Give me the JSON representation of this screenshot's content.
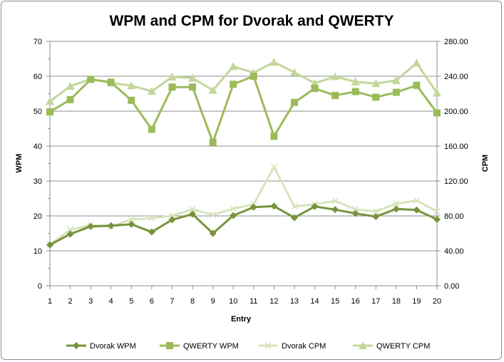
{
  "chart_data": {
    "type": "line",
    "title": "WPM and CPM for Dvorak and QWERTY",
    "xlabel": "Entry",
    "ylabel": "WPM",
    "y2label": "CPM",
    "x": [
      1,
      2,
      3,
      4,
      5,
      6,
      7,
      8,
      9,
      10,
      11,
      12,
      13,
      14,
      15,
      16,
      17,
      18,
      19,
      20
    ],
    "ylim": [
      0,
      70
    ],
    "yticks": [
      "0",
      "10",
      "20",
      "30",
      "40",
      "50",
      "60",
      "70"
    ],
    "y2lim": [
      0,
      280
    ],
    "y2ticks": [
      "0.00",
      "40.00",
      "80.00",
      "120.00",
      "160.00",
      "200.00",
      "240.00",
      "280.00"
    ],
    "grid": "horizontal",
    "legend": "bottom",
    "series": [
      {
        "name": "Dvorak WPM",
        "axis": "left",
        "marker": "diamond",
        "color": "#77933c",
        "values": [
          11.7,
          14.8,
          17.0,
          17.2,
          17.6,
          15.4,
          18.9,
          20.5,
          15.0,
          20.1,
          22.5,
          22.8,
          19.5,
          22.7,
          21.8,
          20.7,
          19.8,
          22.0,
          21.7,
          19.0
        ]
      },
      {
        "name": "QWERTY WPM",
        "axis": "left",
        "marker": "square",
        "color": "#9bbb59",
        "values": [
          49.8,
          53.3,
          59.1,
          58.3,
          53.1,
          44.8,
          56.9,
          56.9,
          41.1,
          57.7,
          60.0,
          42.8,
          52.5,
          56.5,
          54.5,
          55.6,
          54.0,
          55.4,
          57.4,
          49.5
        ]
      },
      {
        "name": "Dvorak CPM",
        "axis": "right",
        "marker": "x",
        "color": "#d7e4bd",
        "values": [
          47.2,
          64.2,
          69.4,
          67.6,
          76.0,
          77.2,
          80.2,
          87.6,
          81.2,
          88.2,
          93.4,
          136.0,
          90.8,
          93.2,
          97.2,
          87.6,
          85.2,
          94.0,
          97.6,
          85.0
        ]
      },
      {
        "name": "QWERTY CPM",
        "axis": "right",
        "marker": "triangle",
        "color": "#c3d69b",
        "values": [
          211.2,
          228.6,
          236.8,
          232.4,
          229.2,
          222.8,
          239.2,
          238.0,
          224.0,
          251.2,
          244.0,
          256.2,
          244.4,
          232.0,
          239.6,
          233.6,
          231.6,
          235.2,
          255.2,
          220.8
        ]
      }
    ]
  }
}
